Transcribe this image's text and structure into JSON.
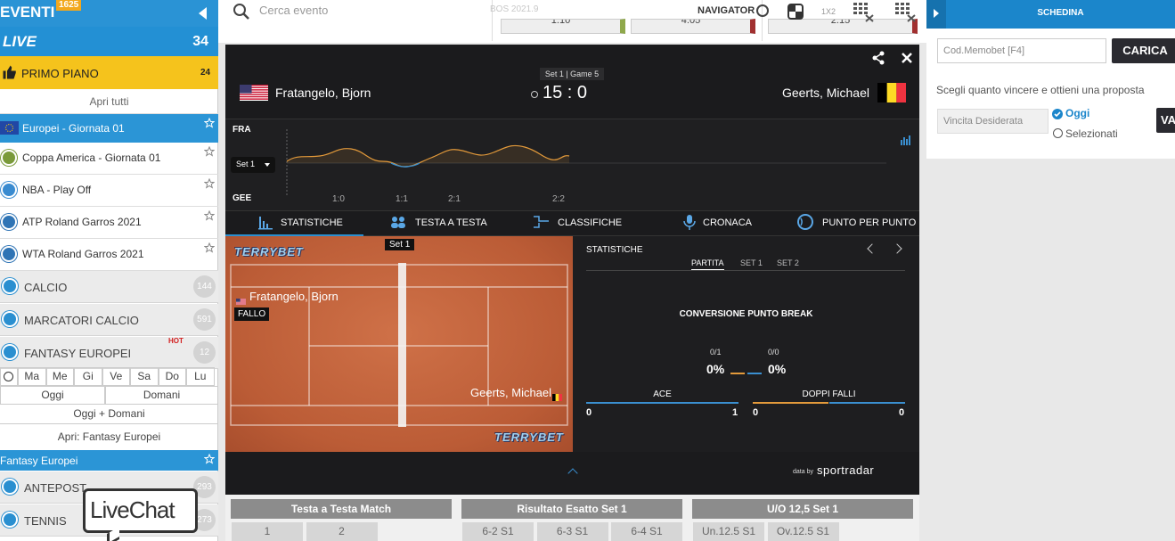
{
  "sidebar": {
    "title": "EVENTI",
    "badge": "1625",
    "live": {
      "label": "LIVE",
      "count": "34"
    },
    "primo_piano": {
      "label": "PRIMO PIANO",
      "count": "24"
    },
    "apri_tutti": "Apri tutti",
    "highlighted": "Europei - Giornata 01",
    "items": [
      "Coppa America - Giornata 01",
      "NBA - Play Off",
      "ATP Roland Garros 2021",
      "WTA Roland Garros 2021"
    ],
    "sports": [
      {
        "label": "CALCIO",
        "count": "144"
      },
      {
        "label": "MARCATORI CALCIO",
        "count": "591"
      },
      {
        "label": "FANTASY EUROPEI",
        "count": "12",
        "tag": "HOT"
      }
    ],
    "days": [
      "Ma",
      "Me",
      "Gi",
      "Ve",
      "Sa",
      "Do",
      "Lu"
    ],
    "oggi": "Oggi",
    "domani": "Domani",
    "oggi_domani": "Oggi + Domani",
    "apri_fantasy": "Apri: Fantasy Europei",
    "fantasy_header": "Fantasy Europei",
    "more": [
      {
        "label": "ANTEPOST",
        "count": "293"
      },
      {
        "label": "TENNIS",
        "count": "273"
      }
    ]
  },
  "livechat": "LiveChat",
  "topbar": {
    "search": "Cerca evento",
    "event_code": "BOS 2021.9",
    "navigator": "NAVIGATOR",
    "mode": "1X2",
    "odds": [
      "1.10",
      "4.05",
      "2.15"
    ]
  },
  "widget": {
    "set_game": "Set 1 | Game 5",
    "home": "Fratangelo, Bjorn",
    "away": "Geerts, Michael",
    "score": "15 : 0",
    "chart": {
      "top": "FRA",
      "bottom": "GEE",
      "set": "Set 1",
      "labels": [
        "1:0",
        "1:1",
        "2:1",
        "2:2"
      ]
    },
    "tabs": [
      "STATISTICHE",
      "TESTA A TESTA",
      "CLASSIFICHE",
      "CRONACA",
      "PUNTO PER PUNTO"
    ],
    "court": {
      "set": "Set 1",
      "player": "Fratangelo, Bjorn",
      "event": "FALLO",
      "player2": "Geerts, Michael",
      "brand": "TERRYBET"
    },
    "stats": {
      "title": "STATISTICHE",
      "periods": [
        "PARTITA",
        "SET 1",
        "SET 2"
      ],
      "section": "CONVERSIONE PUNTO BREAK",
      "home_ratio": "0/1",
      "home_pct": "0%",
      "away_ratio": "0/0",
      "away_pct": "0%",
      "ace": {
        "label": "ACE",
        "home": "0",
        "away": "1"
      },
      "df": {
        "label": "DOPPI FALLI",
        "home": "0",
        "away": "0"
      }
    },
    "credit_prefix": "data by",
    "credit": "sportradar"
  },
  "markets": [
    {
      "title": "Testa a Testa Match",
      "options": [
        "1",
        "2"
      ]
    },
    {
      "title": "Risultato Esatto Set 1",
      "options": [
        "6-2 S1",
        "6-3 S1",
        "6-4 S1"
      ]
    },
    {
      "title": "U/O 12,5 Set 1",
      "options": [
        "Un.12.5 S1",
        "Ov.12.5 S1"
      ]
    }
  ],
  "schedina": {
    "title": "SCHEDINA",
    "code_placeholder": "Cod.Memobet [F4]",
    "load": "CARICA",
    "prompt": "Scegli quanto vincere e ottieni una proposta",
    "amount_placeholder": "Vincita Desiderata",
    "options": [
      "Oggi",
      "Selezionati"
    ],
    "go": "VA"
  }
}
